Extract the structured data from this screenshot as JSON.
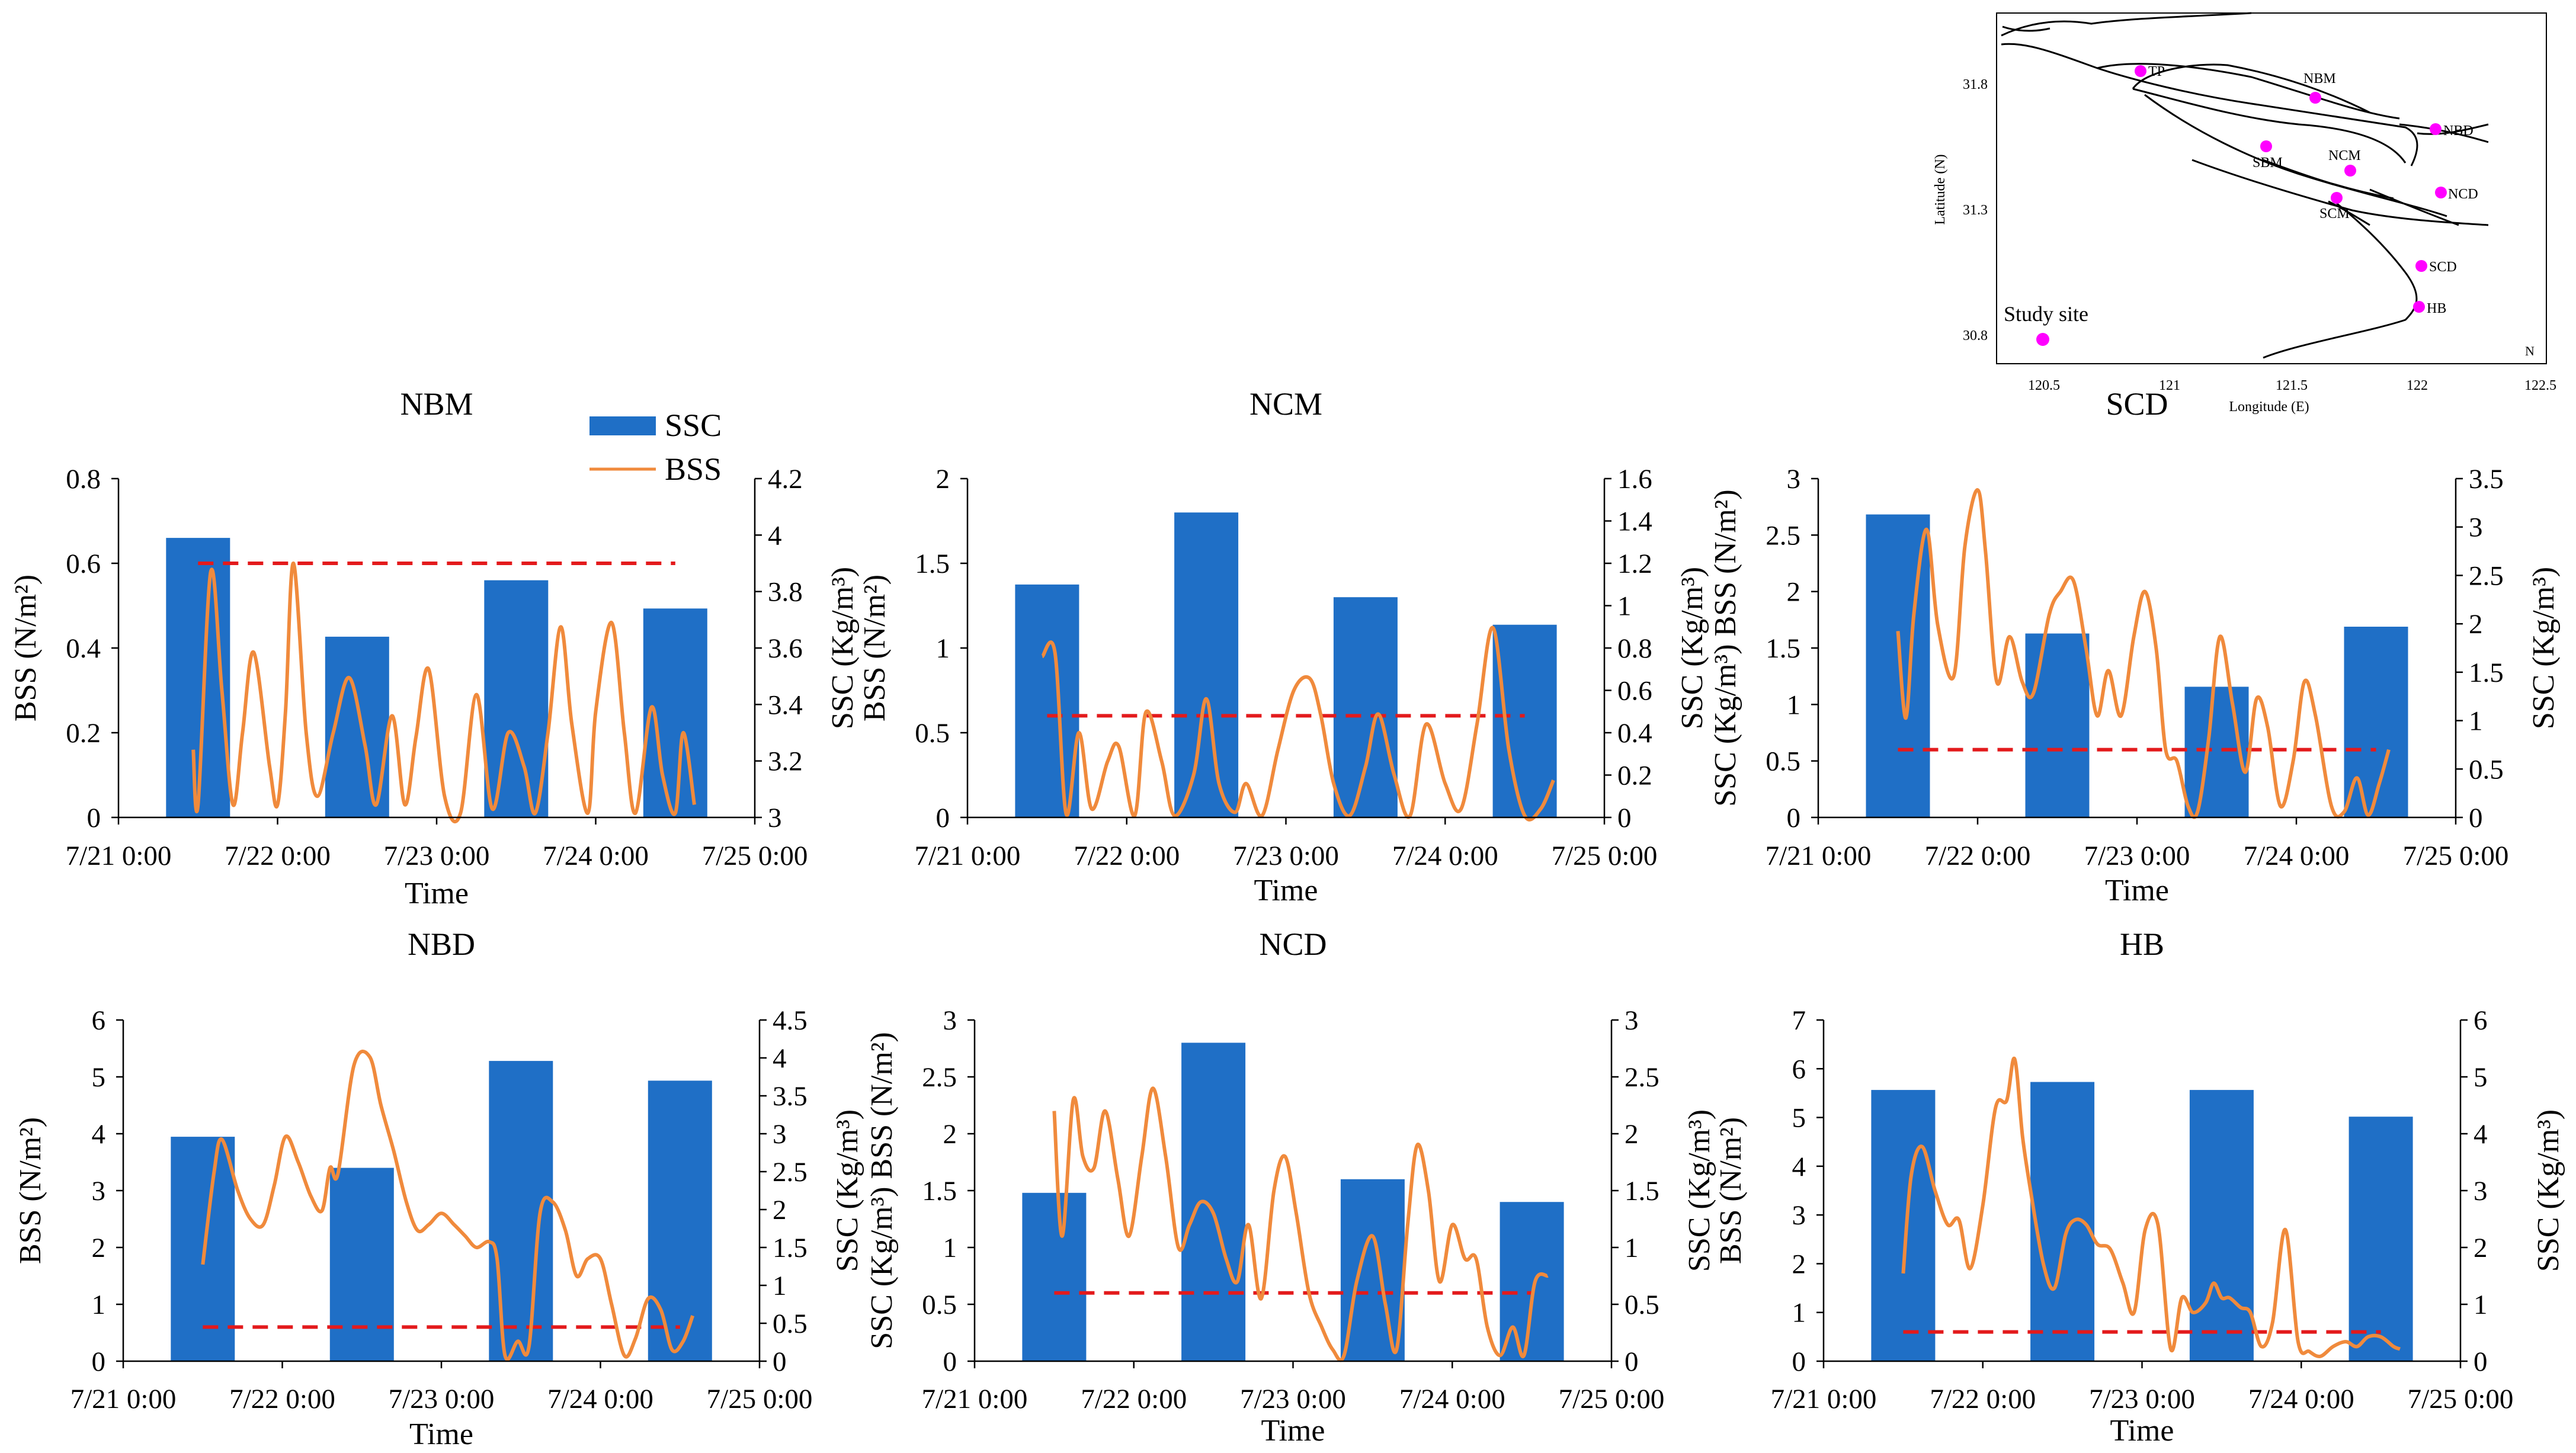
{
  "colors": {
    "ssc_bar": "#1f6fc6",
    "bss_line": "#f08a3c",
    "threshold": "#e31a1c",
    "station_dot": "#ff00ff"
  },
  "legend": {
    "ssc": "SSC",
    "bss": "BSS"
  },
  "map": {
    "ylabel": "Latitude (N)",
    "xlabel": "Longitude (E)",
    "lat_ticks": [
      "31.8",
      "31.3",
      "30.8"
    ],
    "lon_ticks": [
      "120.5",
      "121",
      "121.5",
      "122",
      "122.5"
    ],
    "stations": [
      "TP",
      "NBM",
      "NBD",
      "SBM",
      "NCM",
      "NCD",
      "SCM",
      "SCD",
      "HB"
    ],
    "legend_label": "Study site",
    "north_mark": "N"
  },
  "chart_data": [
    {
      "type": "bar+line",
      "title": "NBM",
      "xlabel": "Time",
      "ylabel_left": "BSS (N/m²)",
      "ylabel_right": "SSC (Kg/m³)",
      "x_ticks": [
        "7/21 0:00",
        "7/22 0:00",
        "7/23 0:00",
        "7/24 0:00",
        "7/25 0:00"
      ],
      "left_ticks": [
        "0",
        "0.2",
        "0.4",
        "0.6",
        "0.8"
      ],
      "right_ticks": [
        "3",
        "3.2",
        "3.4",
        "3.6",
        "3.8",
        "4",
        "4.2"
      ],
      "ylim_left": [
        0,
        0.8
      ],
      "ylim_right": [
        3,
        4.2
      ],
      "ssc": {
        "days": [
          0.5,
          1.5,
          2.5,
          3.5
        ],
        "values": [
          3.99,
          3.64,
          3.84,
          3.74
        ]
      },
      "threshold": {
        "value": 0.6,
        "from": 0.5,
        "to": 3.5
      },
      "bss": {
        "t": [
          0.47,
          0.5,
          0.58,
          0.65,
          0.72,
          0.78,
          0.85,
          0.95,
          1.0,
          1.05,
          1.1,
          1.18,
          1.25,
          1.35,
          1.45,
          1.55,
          1.62,
          1.72,
          1.8,
          1.87,
          1.95,
          2.05,
          2.15,
          2.25,
          2.35,
          2.45,
          2.55,
          2.62,
          2.7,
          2.78,
          2.85,
          2.95,
          3.0,
          3.1,
          3.18,
          3.25,
          3.35,
          3.42,
          3.5,
          3.55,
          3.62
        ],
        "v": [
          0.16,
          0.03,
          0.58,
          0.3,
          0.03,
          0.2,
          0.39,
          0.12,
          0.03,
          0.25,
          0.6,
          0.2,
          0.05,
          0.2,
          0.33,
          0.17,
          0.03,
          0.24,
          0.03,
          0.19,
          0.35,
          0.05,
          0.01,
          0.29,
          0.02,
          0.2,
          0.12,
          0.01,
          0.2,
          0.45,
          0.22,
          0.01,
          0.25,
          0.46,
          0.2,
          0.01,
          0.26,
          0.1,
          0.01,
          0.2,
          0.03
        ]
      }
    },
    {
      "type": "bar+line",
      "title": "NCM",
      "xlabel": "Time",
      "ylabel_left": "BSS (N/m²)",
      "ylabel_right": "SSC (Kg/m³)",
      "x_ticks": [
        "7/21 0:00",
        "7/22 0:00",
        "7/23 0:00",
        "7/24 0:00",
        "7/25 0:00"
      ],
      "left_ticks": [
        "0",
        "0.5",
        "1",
        "1.5",
        "2"
      ],
      "right_ticks": [
        "0",
        "0.2",
        "0.4",
        "0.6",
        "0.8",
        "1",
        "1.2",
        "1.4",
        "1.6"
      ],
      "ylim_left": [
        0,
        2
      ],
      "ylim_right": [
        0,
        1.6
      ],
      "ssc": {
        "days": [
          0.5,
          1.5,
          2.5,
          3.5
        ],
        "values": [
          1.1,
          1.44,
          1.04,
          0.91
        ]
      },
      "threshold": {
        "value": 0.6,
        "from": 0.5,
        "to": 3.5
      },
      "bss": {
        "t": [
          0.47,
          0.55,
          0.62,
          0.7,
          0.78,
          0.88,
          0.95,
          1.05,
          1.12,
          1.22,
          1.3,
          1.42,
          1.5,
          1.58,
          1.68,
          1.75,
          1.85,
          1.95,
          2.05,
          2.15,
          2.22,
          2.3,
          2.4,
          2.5,
          2.58,
          2.68,
          2.78,
          2.88,
          3.0,
          3.1,
          3.2,
          3.3,
          3.4,
          3.5,
          3.6,
          3.68
        ],
        "v": [
          0.95,
          0.97,
          0.02,
          0.5,
          0.05,
          0.33,
          0.42,
          0.01,
          0.62,
          0.33,
          0.01,
          0.25,
          0.7,
          0.2,
          0.03,
          0.2,
          0.01,
          0.4,
          0.75,
          0.82,
          0.6,
          0.2,
          0.01,
          0.3,
          0.61,
          0.25,
          0.01,
          0.55,
          0.2,
          0.05,
          0.55,
          1.12,
          0.4,
          0.01,
          0.05,
          0.22
        ]
      }
    },
    {
      "type": "bar+line",
      "title": "SCD",
      "xlabel": "Time",
      "ylabel_left": "SSC (Kg/m³) BSS (N/m²)",
      "ylabel_right": "SSC (Kg/m³)",
      "x_ticks": [
        "7/21 0:00",
        "7/22 0:00",
        "7/23 0:00",
        "7/24 0:00",
        "7/25 0:00"
      ],
      "left_ticks": [
        "0",
        "0.5",
        "1",
        "1.5",
        "2",
        "2.5",
        "3"
      ],
      "right_ticks": [
        "0",
        "0.5",
        "1",
        "1.5",
        "2",
        "2.5",
        "3",
        "3.5"
      ],
      "ylim_left": [
        0,
        3
      ],
      "ylim_right": [
        0,
        3.5
      ],
      "ssc": {
        "days": [
          0.5,
          1.5,
          2.5,
          3.5
        ],
        "values": [
          3.13,
          1.9,
          1.35,
          1.97
        ]
      },
      "threshold": {
        "value": 0.6,
        "from": 0.5,
        "to": 3.5
      },
      "bss": {
        "t": [
          0.5,
          0.55,
          0.6,
          0.68,
          0.75,
          0.85,
          0.92,
          1.0,
          1.05,
          1.12,
          1.2,
          1.28,
          1.35,
          1.45,
          1.52,
          1.6,
          1.68,
          1.75,
          1.82,
          1.9,
          1.98,
          2.05,
          2.12,
          2.18,
          2.25,
          2.32,
          2.38,
          2.45,
          2.52,
          2.6,
          2.68,
          2.75,
          2.82,
          2.9,
          2.98,
          3.05,
          3.12,
          3.22,
          3.3,
          3.38,
          3.45,
          3.52,
          3.58
        ],
        "v": [
          1.65,
          0.88,
          1.8,
          2.55,
          1.7,
          1.25,
          2.4,
          2.9,
          2.35,
          1.2,
          1.6,
          1.2,
          1.1,
          1.8,
          2.0,
          2.1,
          1.5,
          0.9,
          1.3,
          0.9,
          1.6,
          2.0,
          1.5,
          0.6,
          0.5,
          0.1,
          0.05,
          0.7,
          1.6,
          1.0,
          0.4,
          1.05,
          0.8,
          0.1,
          0.5,
          1.2,
          0.9,
          0.1,
          0.05,
          0.35,
          0.02,
          0.3,
          0.6
        ]
      }
    },
    {
      "type": "bar+line",
      "title": "NBD",
      "xlabel": "Time",
      "ylabel_left": "BSS (N/m²)",
      "ylabel_right": "SSC (Kg/m³)",
      "x_ticks": [
        "7/21 0:00",
        "7/22 0:00",
        "7/23 0:00",
        "7/24 0:00",
        "7/25 0:00"
      ],
      "left_ticks": [
        "0",
        "1",
        "2",
        "3",
        "4",
        "5",
        "6"
      ],
      "right_ticks": [
        "0",
        "0.5",
        "1",
        "1.5",
        "2",
        "2.5",
        "3",
        "3.5",
        "4",
        "4.5"
      ],
      "ylim_left": [
        0,
        6
      ],
      "ylim_right": [
        0,
        4.5
      ],
      "ssc": {
        "days": [
          0.5,
          1.5,
          2.5,
          3.5
        ],
        "values": [
          2.96,
          2.55,
          3.96,
          3.7
        ]
      },
      "threshold": {
        "value": 0.6,
        "from": 0.5,
        "to": 3.5
      },
      "bss": {
        "t": [
          0.5,
          0.57,
          0.62,
          0.72,
          0.8,
          0.88,
          0.95,
          1.02,
          1.1,
          1.18,
          1.25,
          1.3,
          1.35,
          1.45,
          1.55,
          1.62,
          1.7,
          1.78,
          1.85,
          1.92,
          2.0,
          2.08,
          2.15,
          2.22,
          2.3,
          2.35,
          2.4,
          2.48,
          2.55,
          2.62,
          2.7,
          2.78,
          2.85,
          2.92,
          3.0,
          3.07,
          3.15,
          3.22,
          3.3,
          3.38,
          3.45,
          3.52,
          3.58
        ],
        "v": [
          1.7,
          3.3,
          3.9,
          3.0,
          2.5,
          2.4,
          3.1,
          3.95,
          3.5,
          2.9,
          2.65,
          3.4,
          3.3,
          5.2,
          5.35,
          4.5,
          3.7,
          2.8,
          2.3,
          2.4,
          2.6,
          2.4,
          2.2,
          2.0,
          2.1,
          1.8,
          0.1,
          0.35,
          0.25,
          2.6,
          2.8,
          2.3,
          1.5,
          1.8,
          1.8,
          1.0,
          0.1,
          0.4,
          1.1,
          0.9,
          0.2,
          0.35,
          0.8
        ]
      }
    },
    {
      "type": "bar+line",
      "title": "NCD",
      "xlabel": "Time",
      "ylabel_left": "SSC (Kg/m³) BSS (N/m²)",
      "ylabel_right": "SSC (Kg/m³)",
      "x_ticks": [
        "7/21 0:00",
        "7/22 0:00",
        "7/23 0:00",
        "7/24 0:00",
        "7/25 0:00"
      ],
      "left_ticks": [
        "0",
        "0.5",
        "1",
        "1.5",
        "2",
        "2.5",
        "3"
      ],
      "right_ticks": [
        "0",
        "0.5",
        "1",
        "1.5",
        "2",
        "2.5",
        "3"
      ],
      "ylim_left": [
        0,
        3
      ],
      "ylim_right": [
        0,
        3
      ],
      "ssc": {
        "days": [
          0.5,
          1.5,
          2.5,
          3.5
        ],
        "values": [
          1.48,
          2.8,
          1.6,
          1.4
        ]
      },
      "threshold": {
        "value": 0.6,
        "from": 0.5,
        "to": 3.5
      },
      "bss": {
        "t": [
          0.5,
          0.55,
          0.62,
          0.68,
          0.75,
          0.82,
          0.9,
          0.97,
          1.05,
          1.12,
          1.2,
          1.28,
          1.35,
          1.42,
          1.5,
          1.58,
          1.65,
          1.72,
          1.8,
          1.88,
          1.95,
          2.02,
          2.1,
          2.18,
          2.25,
          2.32,
          2.4,
          2.5,
          2.58,
          2.65,
          2.72,
          2.78,
          2.85,
          2.92,
          3.0,
          3.08,
          3.15,
          3.22,
          3.3,
          3.38,
          3.45,
          3.52,
          3.6
        ],
        "v": [
          2.2,
          1.1,
          2.3,
          1.8,
          1.7,
          2.2,
          1.6,
          1.1,
          1.8,
          2.4,
          1.8,
          1.0,
          1.2,
          1.4,
          1.3,
          0.9,
          0.7,
          1.2,
          0.55,
          1.5,
          1.8,
          1.3,
          0.6,
          0.3,
          0.1,
          0.05,
          0.7,
          1.1,
          0.5,
          0.1,
          1.2,
          1.9,
          1.5,
          0.7,
          1.2,
          0.9,
          0.9,
          0.3,
          0.05,
          0.3,
          0.05,
          0.7,
          0.75
        ]
      }
    },
    {
      "type": "bar+line",
      "title": "HB",
      "xlabel": "Time",
      "ylabel_left": "BSS (N/m²)",
      "ylabel_right": "SSC (Kg/m³)",
      "x_ticks": [
        "7/21 0:00",
        "7/22 0:00",
        "7/23 0:00",
        "7/24 0:00",
        "7/25 0:00"
      ],
      "left_ticks": [
        "0",
        "1",
        "2",
        "3",
        "4",
        "5",
        "6",
        "7"
      ],
      "right_ticks": [
        "0",
        "1",
        "2",
        "3",
        "4",
        "5",
        "6"
      ],
      "ylim_left": [
        0,
        7
      ],
      "ylim_right": [
        0,
        6
      ],
      "ssc": {
        "days": [
          0.5,
          1.5,
          2.5,
          3.5
        ],
        "values": [
          4.77,
          4.91,
          4.77,
          4.3
        ]
      },
      "threshold": {
        "value": 0.6,
        "from": 0.5,
        "to": 3.5
      },
      "bss": {
        "t": [
          0.5,
          0.55,
          0.62,
          0.7,
          0.78,
          0.85,
          0.92,
          1.0,
          1.08,
          1.15,
          1.2,
          1.25,
          1.3,
          1.38,
          1.45,
          1.52,
          1.58,
          1.65,
          1.72,
          1.8,
          1.88,
          1.95,
          2.02,
          2.1,
          2.18,
          2.25,
          2.32,
          2.4,
          2.45,
          2.5,
          2.55,
          2.62,
          2.68,
          2.75,
          2.82,
          2.9,
          2.98,
          3.05,
          3.12,
          3.2,
          3.28,
          3.35,
          3.42,
          3.5,
          3.58,
          3.62
        ],
        "v": [
          1.8,
          3.8,
          4.4,
          3.5,
          2.8,
          2.9,
          1.9,
          3.2,
          5.2,
          5.35,
          6.2,
          4.6,
          3.5,
          2.0,
          1.5,
          2.6,
          2.9,
          2.8,
          2.4,
          2.3,
          1.6,
          1.0,
          2.7,
          2.8,
          0.25,
          1.3,
          1.0,
          1.2,
          1.6,
          1.3,
          1.3,
          1.1,
          1.0,
          0.3,
          0.8,
          2.7,
          0.4,
          0.2,
          0.1,
          0.3,
          0.4,
          0.3,
          0.5,
          0.5,
          0.3,
          0.25
        ]
      }
    }
  ]
}
